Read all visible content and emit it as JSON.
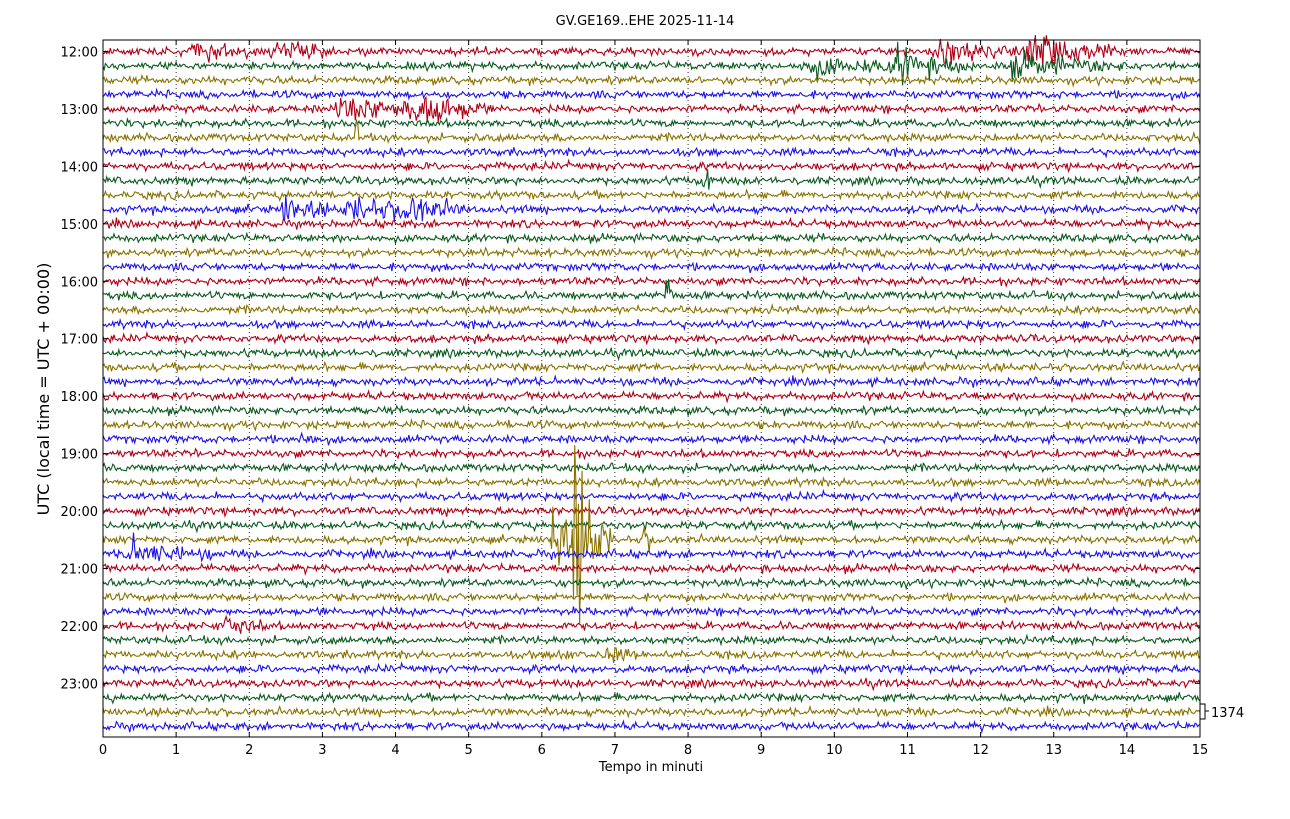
{
  "chart_data": {
    "type": "line",
    "title": "GV.GE169..EHE 2025-11-14",
    "xlabel": "Tempo in minuti",
    "ylabel": "UTC (local time = UTC + 00:00)",
    "xlim": [
      0,
      15
    ],
    "x_ticks": [
      "0",
      "1",
      "2",
      "3",
      "4",
      "5",
      "6",
      "7",
      "8",
      "9",
      "10",
      "11",
      "12",
      "13",
      "14",
      "15"
    ],
    "hour_labels": [
      "12:00",
      "13:00",
      "14:00",
      "15:00",
      "16:00",
      "17:00",
      "18:00",
      "19:00",
      "20:00",
      "21:00",
      "22:00",
      "23:00"
    ],
    "trace_count": 48,
    "trace_interval_minutes": 15,
    "trace_colors": [
      "#b00018",
      "#0b5a1f",
      "#8a7200",
      "#1e12e8"
    ],
    "scale_label": "1374",
    "grid": "vertical-dotted",
    "events": [
      {
        "trace": 0,
        "minute": 1.3,
        "amp": 0.45,
        "width": 0.5
      },
      {
        "trace": 0,
        "minute": 2.4,
        "amp": 0.35,
        "width": 0.6
      },
      {
        "trace": 0,
        "minute": 11.5,
        "amp": 0.4,
        "width": 0.8
      },
      {
        "trace": 0,
        "minute": 12.7,
        "amp": 0.8,
        "width": 0.6
      },
      {
        "trace": 1,
        "minute": 9.7,
        "amp": 0.45,
        "width": 0.8
      },
      {
        "trace": 1,
        "minute": 10.9,
        "amp": 0.8,
        "width": 0.5
      },
      {
        "trace": 1,
        "minute": 12.5,
        "amp": 0.5,
        "width": 0.8
      },
      {
        "trace": 4,
        "minute": 3.3,
        "amp": 0.5,
        "width": 1.0
      },
      {
        "trace": 4,
        "minute": 4.2,
        "amp": 0.9,
        "width": 0.5
      },
      {
        "trace": 6,
        "minute": 3.45,
        "amp": 0.6,
        "width": 0.1
      },
      {
        "trace": 6,
        "minute": 15.0,
        "amp": 0.6,
        "width": 0.15
      },
      {
        "trace": 9,
        "minute": 8.2,
        "amp": 1.0,
        "width": 0.1
      },
      {
        "trace": 11,
        "minute": 2.5,
        "amp": 0.8,
        "width": 0.3
      },
      {
        "trace": 11,
        "minute": 3.4,
        "amp": 0.5,
        "width": 0.8
      },
      {
        "trace": 11,
        "minute": 4.1,
        "amp": 0.6,
        "width": 0.4
      },
      {
        "trace": 17,
        "minute": 7.7,
        "amp": 1.4,
        "width": 0.06
      },
      {
        "trace": 27,
        "minute": 2.7,
        "amp": 0.5,
        "width": 0.12
      },
      {
        "trace": 34,
        "minute": 6.15,
        "amp": 3.8,
        "width": 0.12
      },
      {
        "trace": 34,
        "minute": 6.45,
        "amp": 4.5,
        "width": 0.25
      },
      {
        "trace": 34,
        "minute": 7.4,
        "amp": 0.5,
        "width": 0.12
      },
      {
        "trace": 35,
        "minute": 0.4,
        "amp": 0.6,
        "width": 0.6
      },
      {
        "trace": 40,
        "minute": 1.7,
        "amp": 0.5,
        "width": 0.3
      },
      {
        "trace": 42,
        "minute": 6.2,
        "amp": 0.4,
        "width": 0.15
      },
      {
        "trace": 42,
        "minute": 6.9,
        "amp": 0.4,
        "width": 0.2
      }
    ]
  }
}
